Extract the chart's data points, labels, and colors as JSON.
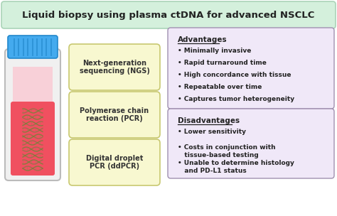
{
  "title": "Liquid biopsy using plasma ctDNA for advanced NSCLC",
  "title_bg": "#d4f0dc",
  "title_edge": "#aad4b8",
  "title_fontsize": 9.5,
  "bg_color": "#ffffff",
  "method_boxes": [
    "Next-generation\nsequencing (NGS)",
    "Polymerase chain\nreaction (PCR)",
    "Digital droplet\nPCR (ddPCR)"
  ],
  "method_box_color": "#f8f8d0",
  "method_box_edge": "#c8c870",
  "adv_title": "Advantages",
  "adv_items": [
    "• Minimally invasive",
    "• Rapid turnaround time",
    "• High concordance with tissue",
    "• Repeatable over time",
    "• Captures tumor heterogeneity"
  ],
  "adv_box_color": "#f0e8f8",
  "adv_box_edge": "#a090b0",
  "dis_title": "Disadvantages",
  "dis_items": [
    "• Lower sensitivity",
    "• Costs in conjunction with\n   tissue-based testing",
    "• Unable to determine histology\n   and PD-L1 status"
  ],
  "dis_box_color": "#f0e8f8",
  "dis_box_edge": "#a090b0",
  "tube_body_color": "#f0f0f0",
  "tube_liquid_color": "#f05060",
  "tube_plasma_color": "#f8d0d8",
  "tube_cap_color": "#44aaee",
  "tube_cap_dark": "#2288cc",
  "tube_border_color": "#bbbbbb",
  "dna_color1": "#887744",
  "dna_color2": "#668833"
}
